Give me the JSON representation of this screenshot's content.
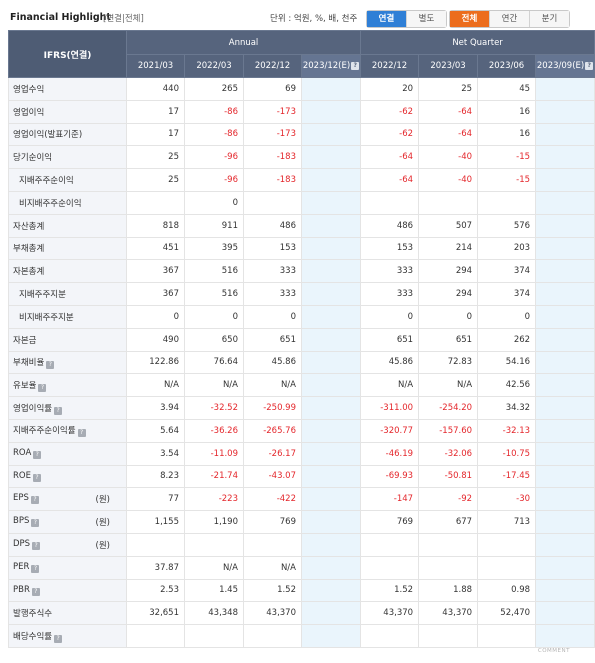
{
  "header": {
    "title": "Financial Highlight",
    "subtitle": "[연결|전체]",
    "units": "단위 : 억원, %, 배, 천주",
    "scope_tabs": [
      "연결",
      "별도"
    ],
    "period_tabs": [
      "전체",
      "연간",
      "분기"
    ]
  },
  "table": {
    "corner": "IFRS(연결)",
    "group_annual": "Annual",
    "group_quarter": "Net Quarter",
    "cols": [
      "2021/03",
      "2022/03",
      "2022/12",
      "2023/12(E)",
      "2022/12",
      "2023/03",
      "2023/06",
      "2023/09(E)"
    ],
    "rows": [
      {
        "label": "영업수익",
        "indent": false,
        "info": false,
        "unit": "",
        "values": [
          "440",
          "265",
          "69",
          "",
          "20",
          "25",
          "45",
          ""
        ]
      },
      {
        "label": "영업이익",
        "indent": false,
        "info": false,
        "unit": "",
        "values": [
          "17",
          "-86",
          "-173",
          "",
          "-62",
          "-64",
          "16",
          ""
        ]
      },
      {
        "label": "영업이익(발표기준)",
        "indent": false,
        "info": false,
        "unit": "",
        "values": [
          "17",
          "-86",
          "-173",
          "",
          "-62",
          "-64",
          "16",
          ""
        ]
      },
      {
        "label": "당기순이익",
        "indent": false,
        "info": false,
        "unit": "",
        "values": [
          "25",
          "-96",
          "-183",
          "",
          "-64",
          "-40",
          "-15",
          ""
        ]
      },
      {
        "label": "지배주주순이익",
        "indent": true,
        "info": false,
        "unit": "",
        "values": [
          "25",
          "-96",
          "-183",
          "",
          "-64",
          "-40",
          "-15",
          ""
        ]
      },
      {
        "label": "비지배주주순이익",
        "indent": true,
        "info": false,
        "unit": "",
        "values": [
          "",
          "0",
          "",
          "",
          "",
          "",
          "",
          ""
        ]
      },
      {
        "label": "자산총계",
        "indent": false,
        "info": false,
        "unit": "",
        "values": [
          "818",
          "911",
          "486",
          "",
          "486",
          "507",
          "576",
          ""
        ]
      },
      {
        "label": "부채총계",
        "indent": false,
        "info": false,
        "unit": "",
        "values": [
          "451",
          "395",
          "153",
          "",
          "153",
          "214",
          "203",
          ""
        ]
      },
      {
        "label": "자본총계",
        "indent": false,
        "info": false,
        "unit": "",
        "values": [
          "367",
          "516",
          "333",
          "",
          "333",
          "294",
          "374",
          ""
        ]
      },
      {
        "label": "지배주주지분",
        "indent": true,
        "info": false,
        "unit": "",
        "values": [
          "367",
          "516",
          "333",
          "",
          "333",
          "294",
          "374",
          ""
        ]
      },
      {
        "label": "비지배주주지분",
        "indent": true,
        "info": false,
        "unit": "",
        "values": [
          "0",
          "0",
          "0",
          "",
          "0",
          "0",
          "0",
          ""
        ]
      },
      {
        "label": "자본금",
        "indent": false,
        "info": false,
        "unit": "",
        "values": [
          "490",
          "650",
          "651",
          "",
          "651",
          "651",
          "262",
          ""
        ]
      },
      {
        "label": "부채비율",
        "indent": false,
        "info": true,
        "unit": "",
        "values": [
          "122.86",
          "76.64",
          "45.86",
          "",
          "45.86",
          "72.83",
          "54.16",
          ""
        ]
      },
      {
        "label": "유보율",
        "indent": false,
        "info": true,
        "unit": "",
        "values": [
          "N/A",
          "N/A",
          "N/A",
          "",
          "N/A",
          "N/A",
          "42.56",
          ""
        ]
      },
      {
        "label": "영업이익률",
        "indent": false,
        "info": true,
        "unit": "",
        "values": [
          "3.94",
          "-32.52",
          "-250.99",
          "",
          "-311.00",
          "-254.20",
          "34.32",
          ""
        ]
      },
      {
        "label": "지배주주순이익률",
        "indent": false,
        "info": true,
        "unit": "",
        "values": [
          "5.64",
          "-36.26",
          "-265.76",
          "",
          "-320.77",
          "-157.60",
          "-32.13",
          ""
        ]
      },
      {
        "label": "ROA",
        "indent": false,
        "info": true,
        "unit": "",
        "values": [
          "3.54",
          "-11.09",
          "-26.17",
          "",
          "-46.19",
          "-32.06",
          "-10.75",
          ""
        ]
      },
      {
        "label": "ROE",
        "indent": false,
        "info": true,
        "unit": "",
        "values": [
          "8.23",
          "-21.74",
          "-43.07",
          "",
          "-69.93",
          "-50.81",
          "-17.45",
          ""
        ]
      },
      {
        "label": "EPS",
        "indent": false,
        "info": true,
        "unit": "(원)",
        "values": [
          "77",
          "-223",
          "-422",
          "",
          "-147",
          "-92",
          "-30",
          ""
        ]
      },
      {
        "label": "BPS",
        "indent": false,
        "info": true,
        "unit": "(원)",
        "values": [
          "1,155",
          "1,190",
          "769",
          "",
          "769",
          "677",
          "713",
          ""
        ]
      },
      {
        "label": "DPS",
        "indent": false,
        "info": true,
        "unit": "(원)",
        "values": [
          "",
          "",
          "",
          "",
          "",
          "",
          "",
          ""
        ]
      },
      {
        "label": "PER",
        "indent": false,
        "info": true,
        "unit": "",
        "values": [
          "37.87",
          "N/A",
          "N/A",
          "",
          "",
          "",
          "",
          ""
        ]
      },
      {
        "label": "PBR",
        "indent": false,
        "info": true,
        "unit": "",
        "values": [
          "2.53",
          "1.45",
          "1.52",
          "",
          "1.52",
          "1.88",
          "0.98",
          ""
        ]
      },
      {
        "label": "발행주식수",
        "indent": false,
        "info": false,
        "unit": "",
        "values": [
          "32,651",
          "43,348",
          "43,370",
          "",
          "43,370",
          "43,370",
          "52,470",
          ""
        ]
      },
      {
        "label": "배당수익률",
        "indent": false,
        "info": true,
        "unit": "",
        "values": [
          "",
          "",
          "",
          "",
          "",
          "",
          "",
          ""
        ]
      }
    ]
  },
  "footer": {
    "text": "COMMENT"
  }
}
